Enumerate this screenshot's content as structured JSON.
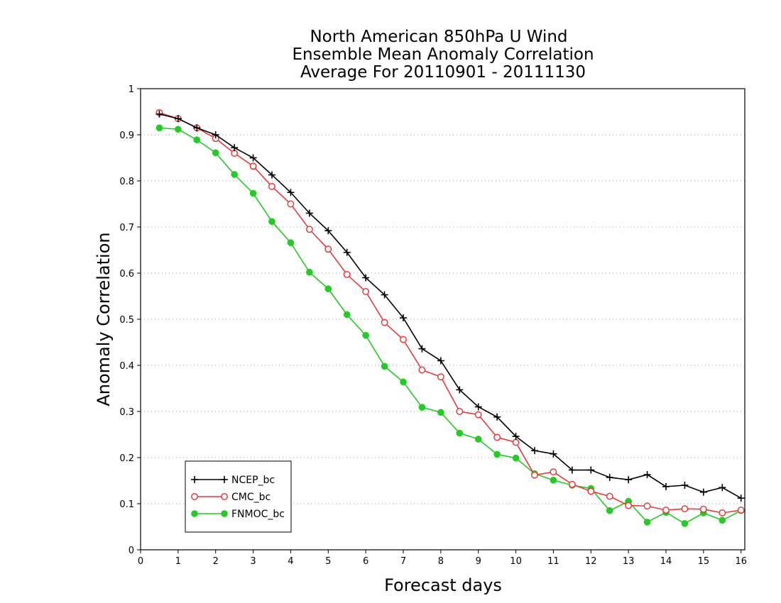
{
  "chart_data": {
    "type": "line",
    "title_lines": [
      "North American 850hPa U Wind",
      "Ensemble Mean Anomaly Correlation",
      "Average For 20110901 - 20111130"
    ],
    "xlabel": "Forecast days",
    "ylabel": "Anomaly Correlation",
    "xlim": [
      0,
      16.1
    ],
    "ylim": [
      0,
      1
    ],
    "xticks": [
      "0",
      "1",
      "2",
      "3",
      "4",
      "5",
      "6",
      "7",
      "8",
      "9",
      "10",
      "11",
      "12",
      "13",
      "14",
      "15",
      "16"
    ],
    "yticks": [
      "0",
      "0.1",
      "0.2",
      "0.3",
      "0.4",
      "0.5",
      "0.6",
      "0.7",
      "0.8",
      "0.9",
      "1"
    ],
    "grid": "horizontal dotted",
    "legend_position": "bottom-left",
    "x": [
      0.5,
      1,
      1.5,
      2,
      2.5,
      3,
      3.5,
      4,
      4.5,
      5,
      5.5,
      6,
      6.5,
      7,
      7.5,
      8,
      8.5,
      9,
      9.5,
      10,
      10.5,
      11,
      11.5,
      12,
      12.5,
      13,
      13.5,
      14,
      14.5,
      15,
      15.5,
      16
    ],
    "series": [
      {
        "name": "NCEP_bc",
        "color": "#000000",
        "marker": "plus",
        "values": [
          0.945,
          0.935,
          0.915,
          0.9,
          0.872,
          0.85,
          0.813,
          0.775,
          0.73,
          0.692,
          0.645,
          0.59,
          0.553,
          0.503,
          0.436,
          0.41,
          0.347,
          0.31,
          0.288,
          0.246,
          0.215,
          0.208,
          0.173,
          0.173,
          0.157,
          0.152,
          0.163,
          0.137,
          0.14,
          0.125,
          0.135,
          0.112
        ]
      },
      {
        "name": "CMC_bc",
        "color": "#e83a3a",
        "marker": "open-circle",
        "values": [
          0.948,
          0.935,
          0.915,
          0.892,
          0.86,
          0.832,
          0.788,
          0.75,
          0.695,
          0.652,
          0.597,
          0.56,
          0.493,
          0.456,
          0.39,
          0.375,
          0.3,
          0.293,
          0.244,
          0.233,
          0.162,
          0.169,
          0.142,
          0.127,
          0.116,
          0.096,
          0.095,
          0.086,
          0.089,
          0.088,
          0.08,
          0.086
        ]
      },
      {
        "name": "FNMOC_bc",
        "color": "#22cc22",
        "marker": "filled-circle",
        "values": [
          0.915,
          0.912,
          0.889,
          0.861,
          0.814,
          0.773,
          0.712,
          0.666,
          0.602,
          0.566,
          0.51,
          0.465,
          0.398,
          0.364,
          0.309,
          0.298,
          0.253,
          0.24,
          0.207,
          0.199,
          0.165,
          0.151,
          0.14,
          0.133,
          0.085,
          0.105,
          0.06,
          0.081,
          0.057,
          0.08,
          0.064,
          0.085
        ]
      }
    ]
  }
}
